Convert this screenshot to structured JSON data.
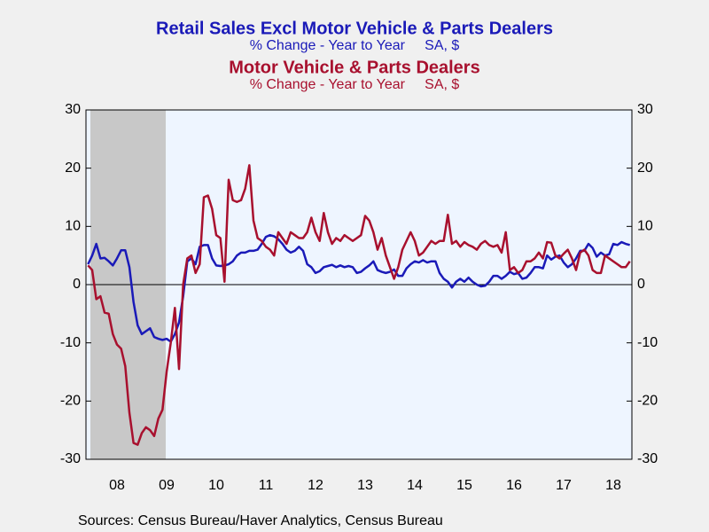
{
  "chart_data": {
    "type": "line",
    "categories": [
      null,
      null,
      null,
      null,
      null,
      null,
      null,
      "08",
      null,
      null,
      null,
      null,
      null,
      null,
      null,
      null,
      null,
      null,
      null,
      "09",
      null,
      null,
      null,
      null,
      null,
      null,
      null,
      null,
      null,
      null,
      null,
      "10",
      null,
      null,
      null,
      null,
      null,
      null,
      null,
      null,
      null,
      null,
      null,
      "11",
      null,
      null,
      null,
      null,
      null,
      null,
      null,
      null,
      null,
      null,
      null,
      "12",
      null,
      null,
      null,
      null,
      null,
      null,
      null,
      null,
      null,
      null,
      null,
      "13",
      null,
      null,
      null,
      null,
      null,
      null,
      null,
      null,
      null,
      null,
      null,
      "14",
      null,
      null,
      null,
      null,
      null,
      null,
      null,
      null,
      null,
      null,
      null,
      "15",
      null,
      null,
      null,
      null,
      null,
      null,
      null,
      null,
      null,
      null,
      null,
      "16",
      null,
      null,
      null,
      null,
      null,
      null,
      null,
      null,
      null,
      null,
      null,
      "17",
      null,
      null,
      null,
      null,
      null,
      null,
      null,
      null,
      null,
      null,
      null,
      "18",
      null,
      null,
      null,
      null
    ],
    "series": [
      {
        "name": "Retail Sales Excl Motor Vehicle & Parts Dealers",
        "subtitle": "% Change - Year to Year     SA, $",
        "color": "#1a1ab8",
        "values": [
          3.5,
          5.0,
          7.0,
          4.5,
          4.6,
          4.0,
          3.3,
          4.5,
          5.9,
          5.9,
          3.0,
          -3.0,
          -7.0,
          -8.5,
          -8.0,
          -7.5,
          -9.0,
          -9.3,
          -9.5,
          -9.3,
          -9.8,
          -8.5,
          -6.5,
          -2.0,
          4.0,
          4.5,
          3.5,
          6.5,
          6.8,
          6.8,
          4.5,
          3.3,
          3.2,
          3.3,
          3.5,
          4.0,
          5.0,
          5.5,
          5.5,
          5.8,
          5.8,
          6.0,
          7.0,
          8.2,
          8.5,
          8.3,
          7.8,
          7.0,
          6.0,
          5.5,
          5.8,
          6.5,
          5.8,
          3.5,
          3.0,
          2.0,
          2.3,
          3.0,
          3.2,
          3.4,
          3.0,
          3.3,
          3.0,
          3.2,
          3.0,
          2.0,
          2.2,
          2.8,
          3.3,
          4.0,
          2.5,
          2.2,
          2.0,
          2.2,
          2.6,
          1.5,
          1.5,
          2.8,
          3.5,
          4.0,
          3.8,
          4.2,
          3.8,
          4.0,
          4.0,
          2.0,
          1.0,
          0.5,
          -0.5,
          0.5,
          1.0,
          0.5,
          1.2,
          0.5,
          0.0,
          -0.3,
          -0.2,
          0.5,
          1.5,
          1.5,
          1.0,
          1.5,
          2.2,
          1.8,
          2.0,
          1.0,
          1.2,
          2.0,
          3.0,
          3.0,
          2.8,
          5.0,
          4.3,
          4.8,
          5.0,
          3.8,
          3.0,
          3.5,
          4.5,
          5.8,
          5.8,
          7.0,
          6.3,
          4.8,
          5.5,
          5.0,
          5.2,
          7.0,
          6.8,
          7.3,
          7.0,
          6.8
        ]
      },
      {
        "name": "Motor Vehicle & Parts Dealers",
        "subtitle": "% Change - Year to Year     SA, $",
        "color": "#a8102e",
        "values": [
          3.3,
          2.5,
          -2.5,
          -2.0,
          -4.8,
          -5.0,
          -8.5,
          -10.3,
          -11.0,
          -14.0,
          -22.0,
          -27.2,
          -27.5,
          -25.5,
          -24.5,
          -25.0,
          -26.0,
          -23.0,
          -21.5,
          -15.0,
          -10.0,
          -4.0,
          -14.5,
          0.0,
          4.5,
          5.0,
          2.0,
          3.5,
          15.0,
          15.3,
          13.0,
          8.5,
          8.0,
          0.5,
          18.0,
          14.5,
          14.2,
          14.5,
          16.5,
          20.5,
          11.0,
          8.0,
          7.5,
          6.5,
          6.0,
          5.0,
          9.0,
          8.0,
          7.0,
          9.0,
          8.5,
          8.0,
          8.0,
          9.0,
          11.5,
          9.0,
          7.5,
          12.3,
          9.0,
          7.0,
          8.0,
          7.5,
          8.5,
          8.0,
          7.5,
          8.0,
          8.5,
          11.8,
          11.0,
          9.0,
          6.0,
          8.0,
          5.0,
          3.0,
          1.0,
          3.0,
          6.0,
          7.5,
          9.0,
          7.5,
          5.0,
          5.5,
          6.5,
          7.5,
          7.0,
          7.5,
          7.5,
          12.0,
          7.0,
          7.5,
          6.5,
          7.3,
          6.8,
          6.5,
          6.0,
          7.0,
          7.5,
          6.8,
          6.5,
          6.8,
          5.5,
          9.0,
          2.5,
          3.0,
          2.0,
          2.5,
          4.0,
          4.0,
          4.5,
          5.5,
          4.5,
          7.3,
          7.2,
          5.0,
          4.5,
          5.3,
          6.0,
          4.5,
          2.5,
          5.5,
          6.0,
          5.0,
          2.5,
          2.0,
          2.0,
          5.0,
          4.5,
          4.0,
          3.5,
          3.0,
          3.0,
          4.0
        ]
      }
    ],
    "ylim": [
      -30,
      30
    ],
    "yticks": [
      -30,
      -20,
      -10,
      0,
      10,
      20,
      30
    ],
    "source": "Sources:  Census Bureau/Haver Analytics, Census Bureau"
  }
}
